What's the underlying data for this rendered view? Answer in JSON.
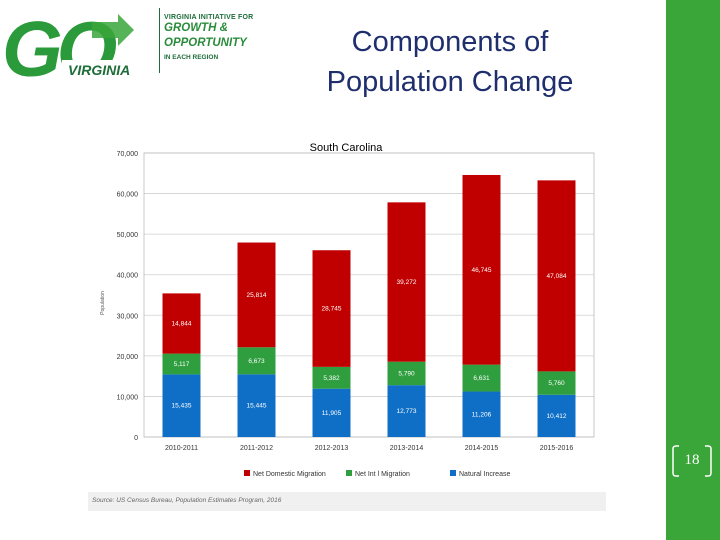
{
  "slide": {
    "title_line1": "Components of",
    "title_line2": "Population Change",
    "page_number": "18"
  },
  "logo": {
    "wordmark": "GO",
    "region": "VIRGINIA",
    "tag_line1": "VIRGINIA INITIATIVE FOR",
    "tag_line2": "GROWTH &",
    "tag_line3": "OPPORTUNITY",
    "tag_line4": "IN EACH REGION"
  },
  "colors": {
    "sidebar": "#3aa63a",
    "title": "#1f2f6e",
    "net_domestic": "#c00000",
    "net_intl": "#2e9e3e",
    "natural": "#0f6fc6"
  },
  "chart_data": {
    "type": "bar",
    "stacked": true,
    "title": "South Carolina",
    "xlabel": "",
    "ylabel": "Population",
    "ylim": [
      0,
      70000
    ],
    "yticks": [
      0,
      10000,
      20000,
      30000,
      40000,
      50000,
      60000,
      70000
    ],
    "ytick_labels": [
      "0",
      "10,000",
      "20,000",
      "30,000",
      "40,000",
      "50,000",
      "60,000",
      "70,000"
    ],
    "grid": true,
    "legend_position": "bottom",
    "categories": [
      "2010-2011",
      "2011-2012",
      "2012-2013",
      "2013-2014",
      "2014-2015",
      "2015-2016"
    ],
    "series": [
      {
        "name": "Natural Increase",
        "color": "#0f6fc6",
        "values": [
          15435,
          15445,
          11905,
          12773,
          11206,
          10412
        ],
        "labels": [
          "15,435",
          "15,445",
          "11,905",
          "12,773",
          "11,206",
          "10,412"
        ]
      },
      {
        "name": "Net Int l Migration",
        "color": "#2e9e3e",
        "values": [
          5117,
          6673,
          5382,
          5790,
          6631,
          5760
        ],
        "labels": [
          "5,117",
          "6,673",
          "5,382",
          "5,790",
          "6,631",
          "5,760"
        ]
      },
      {
        "name": "Net Domestic Migration",
        "color": "#c00000",
        "values": [
          14844,
          25814,
          28745,
          39272,
          46745,
          47084
        ],
        "labels": [
          "14,844",
          "25,814",
          "28,745",
          "39,272",
          "46,745",
          "47,084"
        ]
      }
    ],
    "legend_order": [
      "Net Domestic Migration",
      "Net Int l Migration",
      "Natural Increase"
    ],
    "source": "Source: US Census Bureau, Population Estimates Program, 2016"
  }
}
